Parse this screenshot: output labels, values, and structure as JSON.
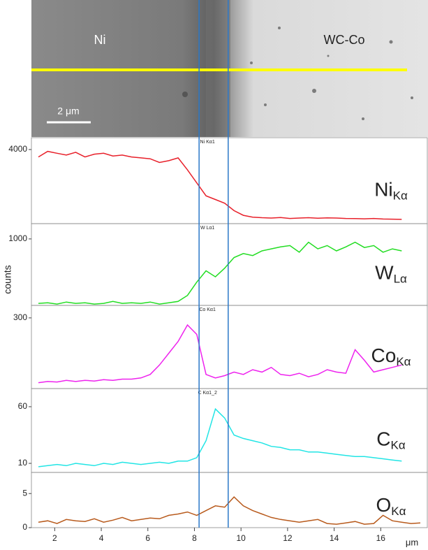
{
  "image": {
    "left_label": "Ni",
    "right_label": "WC-Co",
    "scale_bar": "2 μm"
  },
  "chart_data": {
    "type": "line",
    "y_label": "counts",
    "x_label": "μm",
    "xlim": [
      1,
      18
    ],
    "xticks": [
      2,
      4,
      6,
      8,
      10,
      12,
      14,
      16
    ],
    "vlines": [
      8.2,
      9.45
    ],
    "x": [
      1.3,
      1.7,
      2.1,
      2.5,
      2.9,
      3.3,
      3.7,
      4.1,
      4.5,
      4.9,
      5.3,
      5.7,
      6.1,
      6.5,
      6.9,
      7.3,
      7.7,
      8.1,
      8.5,
      8.9,
      9.3,
      9.7,
      10.1,
      10.5,
      10.9,
      11.3,
      11.7,
      12.1,
      12.5,
      12.9,
      13.3,
      13.7,
      14.1,
      14.5,
      14.9,
      15.3,
      15.7,
      16.1,
      16.5,
      16.9,
      17.3,
      17.7
    ],
    "panels": [
      {
        "name": "Ni",
        "sub": "Kα",
        "tag": "Ni Kα1",
        "color": "#e8202a",
        "ylim": [
          0,
          4640
        ],
        "yticks": [
          4000
        ],
        "values": [
          3600,
          3900,
          3800,
          3700,
          3850,
          3600,
          3750,
          3800,
          3650,
          3700,
          3600,
          3550,
          3500,
          3300,
          3400,
          3550,
          2900,
          2200,
          1500,
          1300,
          1100,
          700,
          450,
          350,
          320,
          300,
          330,
          280,
          300,
          320,
          290,
          310,
          300,
          280,
          270,
          260,
          280,
          250,
          240,
          230,
          null,
          null
        ]
      },
      {
        "name": "W",
        "sub": "Lα",
        "tag": "W Lα1",
        "color": "#22dd22",
        "ylim": [
          0,
          1230
        ],
        "yticks": [
          1000
        ],
        "values": [
          30,
          40,
          20,
          50,
          30,
          40,
          20,
          30,
          60,
          30,
          40,
          30,
          50,
          20,
          40,
          60,
          150,
          350,
          520,
          430,
          560,
          720,
          780,
          750,
          820,
          850,
          880,
          900,
          800,
          950,
          850,
          900,
          820,
          880,
          950,
          870,
          900,
          800,
          850,
          820,
          null,
          null
        ]
      },
      {
        "name": "Co",
        "sub": "Kα",
        "tag": "Co Kα1",
        "color": "#ee22ee",
        "ylim": [
          0,
          353
        ],
        "yticks": [
          300
        ],
        "values": [
          25,
          30,
          28,
          35,
          30,
          35,
          32,
          38,
          35,
          40,
          40,
          45,
          60,
          100,
          150,
          200,
          270,
          230,
          60,
          45,
          55,
          70,
          60,
          80,
          70,
          90,
          60,
          55,
          65,
          50,
          60,
          80,
          70,
          65,
          165,
          120,
          70,
          80,
          90,
          100,
          null,
          null
        ]
      },
      {
        "name": "C",
        "sub": "Kα",
        "tag": "C Kα1_2",
        "color": "#22e5e5",
        "ylim": [
          2,
          76
        ],
        "yticks": [
          10,
          60
        ],
        "values": [
          7,
          8,
          9,
          8,
          10,
          9,
          8,
          10,
          9,
          11,
          10,
          9,
          10,
          11,
          10,
          12,
          12,
          15,
          30,
          58,
          50,
          35,
          32,
          30,
          28,
          25,
          24,
          22,
          22,
          20,
          20,
          19,
          18,
          17,
          16,
          16,
          15,
          14,
          13,
          12,
          null,
          null
        ]
      },
      {
        "name": "O",
        "sub": "Kα",
        "color": "#b85a1c",
        "ylim": [
          0,
          8.1
        ],
        "yticks": [
          0,
          5
        ],
        "values": [
          0.8,
          1.0,
          0.6,
          1.2,
          1.0,
          0.9,
          1.3,
          0.8,
          1.1,
          1.5,
          1.0,
          1.2,
          1.4,
          1.3,
          1.8,
          2.0,
          2.3,
          1.8,
          2.5,
          3.2,
          3.0,
          4.5,
          3.2,
          2.5,
          2.0,
          1.5,
          1.2,
          1.0,
          0.8,
          1.0,
          1.2,
          0.6,
          0.5,
          0.7,
          0.9,
          0.5,
          0.6,
          1.8,
          1.0,
          0.8,
          0.6,
          0.7
        ]
      }
    ]
  }
}
